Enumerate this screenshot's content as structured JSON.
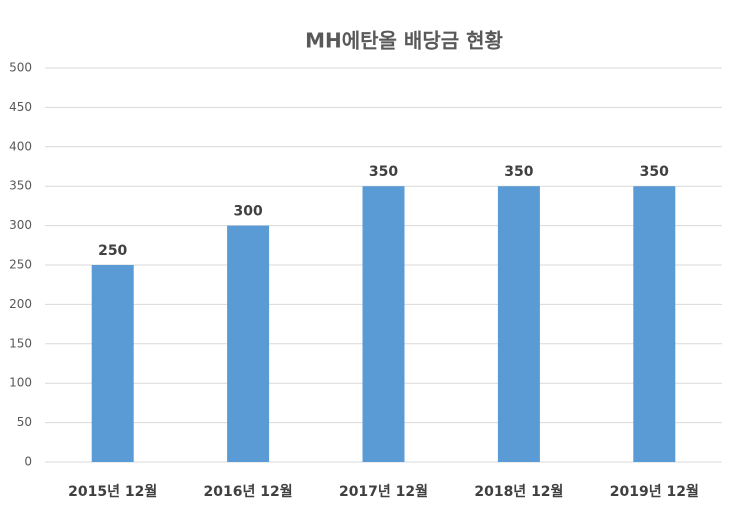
{
  "chart_data": {
    "type": "bar",
    "title": "MH에탄올 배당금 현황",
    "categories": [
      "2015년 12월",
      "2016년 12월",
      "2017년 12월",
      "2018년 12월",
      "2019년 12월"
    ],
    "values": [
      250,
      300,
      350,
      350,
      350
    ],
    "color": "#5b9bd5",
    "ylim": [
      0,
      500
    ],
    "yticks": [
      0,
      50,
      100,
      150,
      200,
      250,
      300,
      350,
      400,
      450,
      500
    ],
    "grid": true
  }
}
